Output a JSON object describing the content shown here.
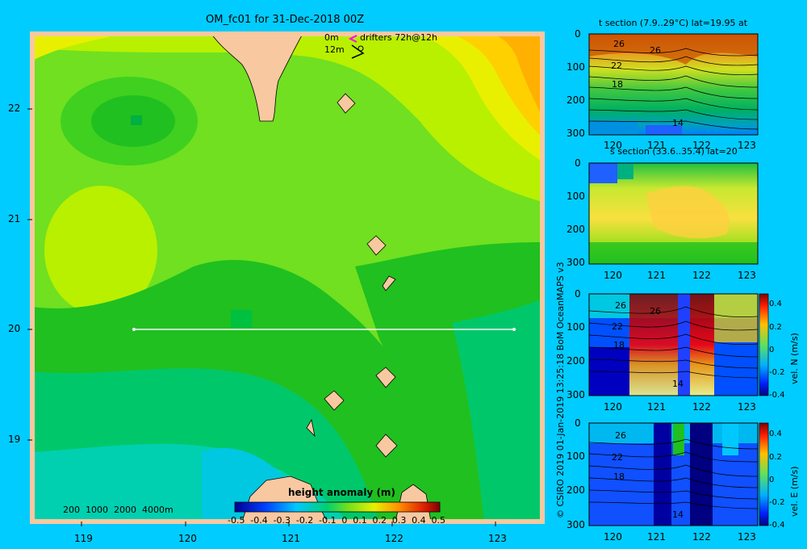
{
  "colors": {
    "page_bg": "#00ccff",
    "land": "#f8c8a0",
    "map_palette": [
      "#00c8e0",
      "#00d0b0",
      "#00c86a",
      "#20c020",
      "#70e020",
      "#b8f000",
      "#e8f000",
      "#ffc000",
      "#ff8800"
    ]
  },
  "map": {
    "title": "OM_fc01 for 31-Dec-2018 00Z",
    "x_ticks": [
      "119",
      "120",
      "121",
      "122",
      "123"
    ],
    "y_ticks": [
      "22",
      "21",
      "20",
      "19"
    ],
    "drifter_legend": {
      "line1": "0m",
      "line2": "12m",
      "text": "drifters 72h@12h"
    },
    "depth_legend": {
      "d1": "200",
      "d2": "1000",
      "d3": "2000",
      "d4": "4000m"
    },
    "colorbar": {
      "label": "height anomaly (m)",
      "ticks": [
        "-0.5",
        "-0.4",
        "-0.3",
        "-0.2",
        "-0.1",
        "0",
        "0.1",
        "0.2",
        "0.3",
        "0.4",
        "0.5"
      ]
    }
  },
  "credit": "© CSIRO 2019   01-Jan-2019 13:25:18 BoM OceanMAPS v3",
  "panels": [
    {
      "title": "t section (7.9..29°C) lat=19.95 at",
      "y_ticks": [
        "0",
        "100",
        "200",
        "300"
      ],
      "x_ticks": [
        "120",
        "121",
        "122",
        "123"
      ],
      "contour_labels": [
        "26",
        "26",
        "22",
        "18",
        "14"
      ]
    },
    {
      "title": "s section (33.6..35.4) lat=20",
      "y_ticks": [
        "0",
        "100",
        "200",
        "300"
      ],
      "x_ticks": [
        "120",
        "121",
        "122",
        "123"
      ]
    },
    {
      "y_ticks": [
        "0",
        "100",
        "200",
        "300"
      ],
      "x_ticks": [
        "120",
        "121",
        "122",
        "123"
      ],
      "contour_labels": [
        "26",
        "26",
        "22",
        "18",
        "14"
      ],
      "colorbar_label": "vel. N (m/s)",
      "colorbar_ticks": [
        "0.4",
        "0.2",
        "0",
        "-0.2",
        "-0.4"
      ]
    },
    {
      "y_ticks": [
        "0",
        "100",
        "200",
        "300"
      ],
      "x_ticks": [
        "120",
        "121",
        "122",
        "123"
      ],
      "contour_labels": [
        "26",
        "22",
        "18",
        "14"
      ],
      "colorbar_label": "vel. E (m/s)",
      "colorbar_ticks": [
        "0.4",
        "0.2",
        "0",
        "-0.2",
        "-0.4"
      ]
    }
  ],
  "chart_data": [
    {
      "type": "heatmap",
      "title": "OM_fc01 for 31-Dec-2018 00Z",
      "xlim": [
        118.5,
        123.5
      ],
      "ylim": [
        18.3,
        22.7
      ],
      "x_ticks": [
        119,
        120,
        121,
        122,
        123
      ],
      "y_ticks": [
        19,
        20,
        21,
        22
      ],
      "colorbar": {
        "label": "height anomaly (m)",
        "range": [
          -0.5,
          0.5
        ]
      },
      "section_line": {
        "lat": 20,
        "lon_range": [
          119.5,
          123.2
        ]
      }
    },
    {
      "type": "heatmap",
      "title": "t section (7.9..29°C) lat=19.95 at",
      "x_ticks": [
        120,
        121,
        122,
        123
      ],
      "y_ticks": [
        0,
        100,
        200,
        300
      ],
      "contour_labels": [
        26,
        26,
        22,
        18,
        14
      ]
    },
    {
      "type": "heatmap",
      "title": "s section (33.6..35.4) lat=20",
      "x_ticks": [
        120,
        121,
        122,
        123
      ],
      "y_ticks": [
        0,
        100,
        200,
        300
      ]
    },
    {
      "type": "heatmap",
      "x_ticks": [
        120,
        121,
        122,
        123
      ],
      "y_ticks": [
        0,
        100,
        200,
        300
      ],
      "colorbar": {
        "label": "vel. N (m/s)",
        "range": [
          -0.4,
          0.4
        ]
      },
      "contour_labels": [
        26,
        26,
        22,
        18,
        14
      ]
    },
    {
      "type": "heatmap",
      "x_ticks": [
        120,
        121,
        122,
        123
      ],
      "y_ticks": [
        0,
        100,
        200,
        300
      ],
      "colorbar": {
        "label": "vel. E (m/s)",
        "range": [
          -0.4,
          0.4
        ]
      },
      "contour_labels": [
        26,
        22,
        18,
        14
      ]
    }
  ]
}
